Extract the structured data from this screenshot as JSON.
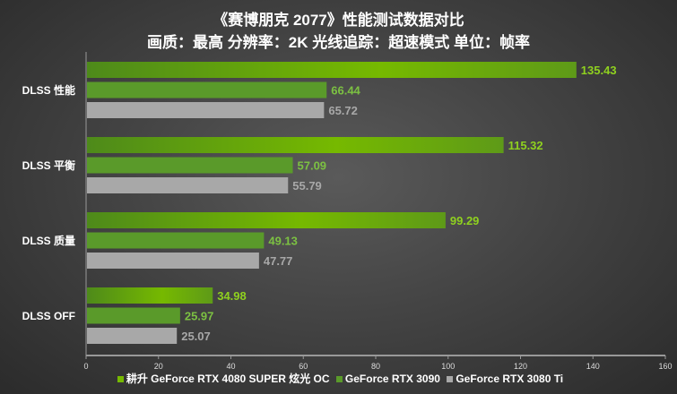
{
  "chart_data": {
    "type": "bar",
    "orientation": "horizontal",
    "title": "《赛博朋克 2077》性能测试数据对比",
    "subtitle": "画质：最高 分辨率：2K 光线追踪：超速模式 单位：帧率",
    "categories": [
      "DLSS 性能",
      "DLSS 平衡",
      "DLSS 质量",
      "DLSS OFF"
    ],
    "series": [
      {
        "name": "耕升 GeForce RTX 4080 SUPER 炫光 OC",
        "color": "#76b900",
        "values": [
          135.43,
          115.32,
          99.29,
          34.98
        ]
      },
      {
        "name": "GeForce RTX 3090",
        "color": "#5a9a2a",
        "values": [
          66.44,
          57.09,
          49.13,
          25.97
        ]
      },
      {
        "name": "GeForce RTX 3080 Ti",
        "color": "#a8a8a8",
        "values": [
          65.72,
          55.79,
          47.77,
          25.07
        ]
      }
    ],
    "xlim": [
      0,
      160
    ],
    "xticks": [
      0,
      20,
      40,
      60,
      80,
      100,
      120,
      140,
      160
    ],
    "grid": false,
    "legend": "bottom",
    "label_colors": [
      "#8fd11f",
      "#7cc142",
      "#a8a8a8"
    ]
  }
}
